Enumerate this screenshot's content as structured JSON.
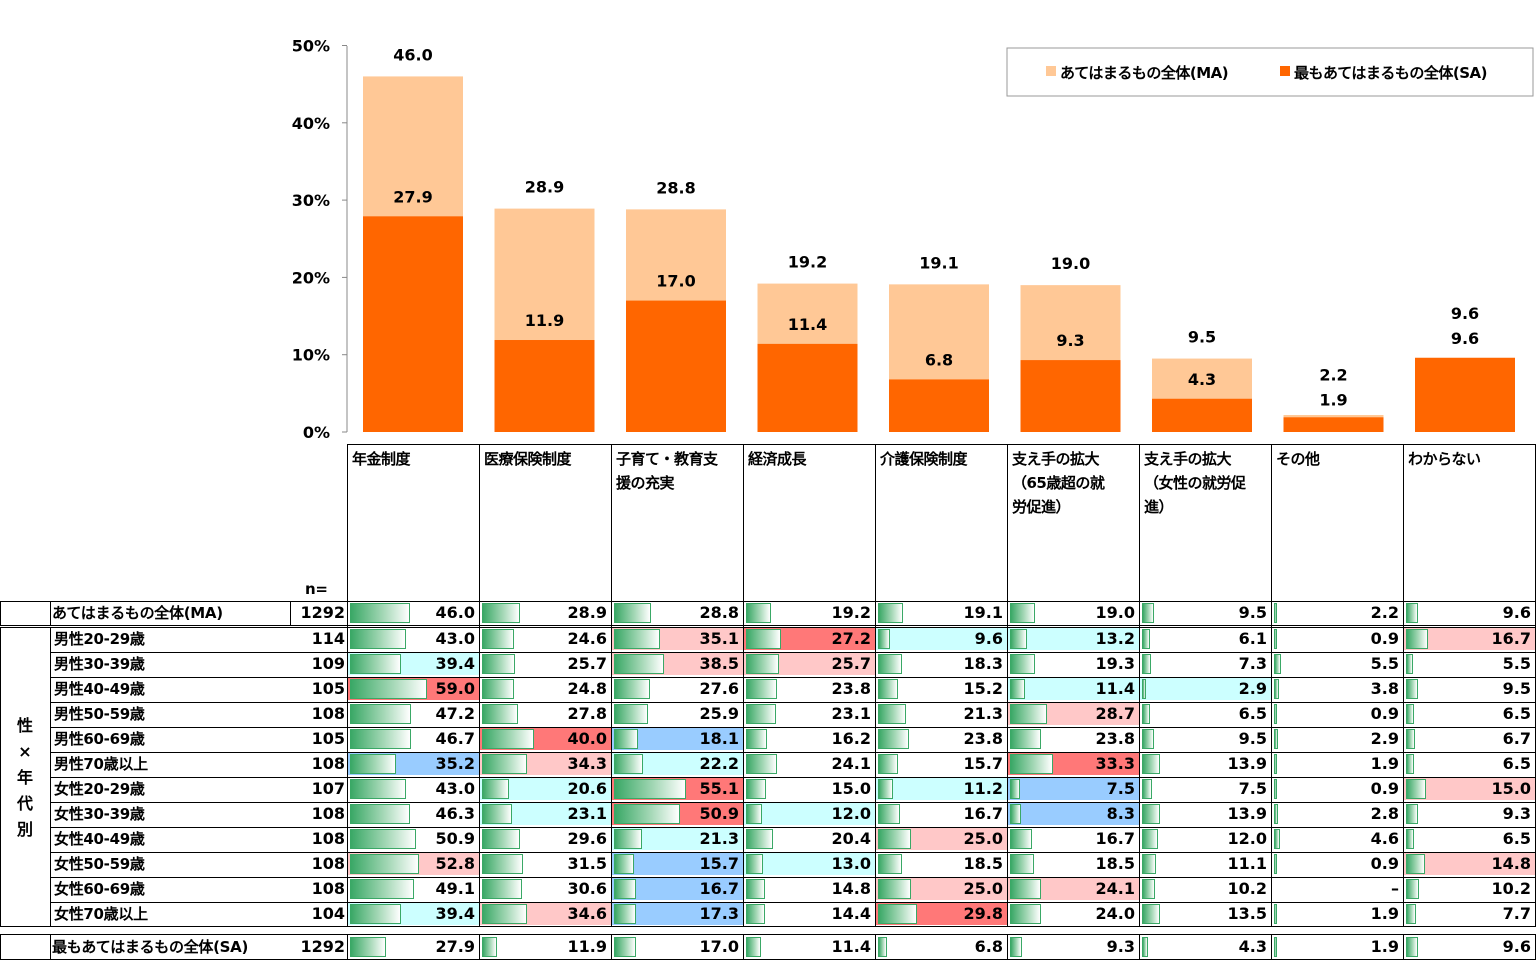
{
  "chart_data": {
    "type": "bar",
    "categories": [
      "年金制度",
      "医療保険制度",
      "子育て・教育支援の充実",
      "経済成長",
      "介護保険制度",
      "支え手の拡大（65歳超の就労促進）",
      "支え手の拡大（女性の就労促進）",
      "その他",
      "わからない"
    ],
    "series": [
      {
        "name": "あてはまるもの全体(MA)",
        "values": [
          46.0,
          28.9,
          28.8,
          19.2,
          19.1,
          19.0,
          9.5,
          2.2,
          9.6
        ],
        "labels": [
          "46.0",
          "28.9",
          "28.8",
          "19.2",
          "19.1",
          "19.0",
          "9.5",
          "2.2",
          "9.6"
        ]
      },
      {
        "name": "最もあてはまるもの全体(SA)",
        "values": [
          27.9,
          11.9,
          17.0,
          11.4,
          6.8,
          9.3,
          4.3,
          1.9,
          9.6
        ],
        "labels": [
          "27.9",
          "11.9",
          "17.0",
          "11.4",
          "6.8",
          "9.3",
          "4.3",
          "1.9",
          "9.6"
        ]
      }
    ],
    "ylim": [
      0,
      50
    ],
    "yticks": [
      "0%",
      "10%",
      "20%",
      "30%",
      "40%",
      "50%"
    ],
    "legend": "top-right",
    "colors": {
      "ma": "#FFC896",
      "sa": "#FF6600"
    }
  },
  "table": {
    "n_label": "n=",
    "headers": [
      [
        "年金制度"
      ],
      [
        "医療保険制度"
      ],
      [
        "子育て・教育支",
        "援の充実"
      ],
      [
        "経済成長"
      ],
      [
        "介護保険制度"
      ],
      [
        "支え手の拡大",
        "（65歳超の就",
        "労促進）"
      ],
      [
        "支え手の拡大",
        "（女性の就労促",
        "進）"
      ],
      [
        "その他"
      ],
      [
        "わからない"
      ]
    ],
    "group_label": [
      "性",
      "×",
      "年",
      "代",
      "別"
    ],
    "highlight_colors": {
      "p": "#FFC8C8",
      "P": "#FF7878",
      "c": "#CCFFFF",
      "b": "#99CCFF"
    },
    "total_ma": {
      "label": "あてはまるもの全体(MA)",
      "n": "1292",
      "values": [
        "46.0",
        "28.9",
        "28.8",
        "19.2",
        "19.1",
        "19.0",
        "9.5",
        "2.2",
        "9.6"
      ],
      "hl": "---------"
    },
    "rows": [
      {
        "label": "男性20-29歳",
        "n": "114",
        "values": [
          "43.0",
          "24.6",
          "35.1",
          "27.2",
          "9.6",
          "13.2",
          "6.1",
          "0.9",
          "16.7"
        ],
        "hl": "--pPcc--p"
      },
      {
        "label": "男性30-39歳",
        "n": "109",
        "values": [
          "39.4",
          "25.7",
          "38.5",
          "25.7",
          "18.3",
          "19.3",
          "7.3",
          "5.5",
          "5.5"
        ],
        "hl": "c-pp-----"
      },
      {
        "label": "男性40-49歳",
        "n": "105",
        "values": [
          "59.0",
          "24.8",
          "27.6",
          "23.8",
          "15.2",
          "11.4",
          "2.9",
          "3.8",
          "9.5"
        ],
        "hl": "P----cc--"
      },
      {
        "label": "男性50-59歳",
        "n": "108",
        "values": [
          "47.2",
          "27.8",
          "25.9",
          "23.1",
          "21.3",
          "28.7",
          "6.5",
          "0.9",
          "6.5"
        ],
        "hl": "-----p---"
      },
      {
        "label": "男性60-69歳",
        "n": "105",
        "values": [
          "46.7",
          "40.0",
          "18.1",
          "16.2",
          "23.8",
          "23.8",
          "9.5",
          "2.9",
          "6.7"
        ],
        "hl": "-Pb------"
      },
      {
        "label": "男性70歳以上",
        "n": "108",
        "values": [
          "35.2",
          "34.3",
          "22.2",
          "24.1",
          "15.7",
          "33.3",
          "13.9",
          "1.9",
          "6.5"
        ],
        "hl": "bpc--P---"
      },
      {
        "label": "女性20-29歳",
        "n": "107",
        "values": [
          "43.0",
          "20.6",
          "55.1",
          "15.0",
          "11.2",
          "7.5",
          "7.5",
          "0.9",
          "15.0"
        ],
        "hl": "-cP-cb--p"
      },
      {
        "label": "女性30-39歳",
        "n": "108",
        "values": [
          "46.3",
          "23.1",
          "50.9",
          "12.0",
          "16.7",
          "8.3",
          "13.9",
          "2.8",
          "9.3"
        ],
        "hl": "-cPc-b---"
      },
      {
        "label": "女性40-49歳",
        "n": "108",
        "values": [
          "50.9",
          "29.6",
          "21.3",
          "20.4",
          "25.0",
          "16.7",
          "12.0",
          "4.6",
          "6.5"
        ],
        "hl": "--c-p----"
      },
      {
        "label": "女性50-59歳",
        "n": "108",
        "values": [
          "52.8",
          "31.5",
          "15.7",
          "13.0",
          "18.5",
          "18.5",
          "11.1",
          "0.9",
          "14.8"
        ],
        "hl": "p-bc----p"
      },
      {
        "label": "女性60-69歳",
        "n": "108",
        "values": [
          "49.1",
          "30.6",
          "16.7",
          "14.8",
          "25.0",
          "24.1",
          "10.2",
          "–",
          "10.2"
        ],
        "hl": "--b-pp---"
      },
      {
        "label": "女性70歳以上",
        "n": "104",
        "values": [
          "39.4",
          "34.6",
          "17.3",
          "14.4",
          "29.8",
          "24.0",
          "13.5",
          "1.9",
          "7.7"
        ],
        "hl": "cpb-P----"
      }
    ],
    "total_sa": {
      "label": "最もあてはまるもの全体(SA)",
      "n": "1292",
      "values": [
        "27.9",
        "11.9",
        "17.0",
        "11.4",
        "6.8",
        "9.3",
        "4.3",
        "1.9",
        "9.6"
      ],
      "hl": "---------"
    }
  }
}
